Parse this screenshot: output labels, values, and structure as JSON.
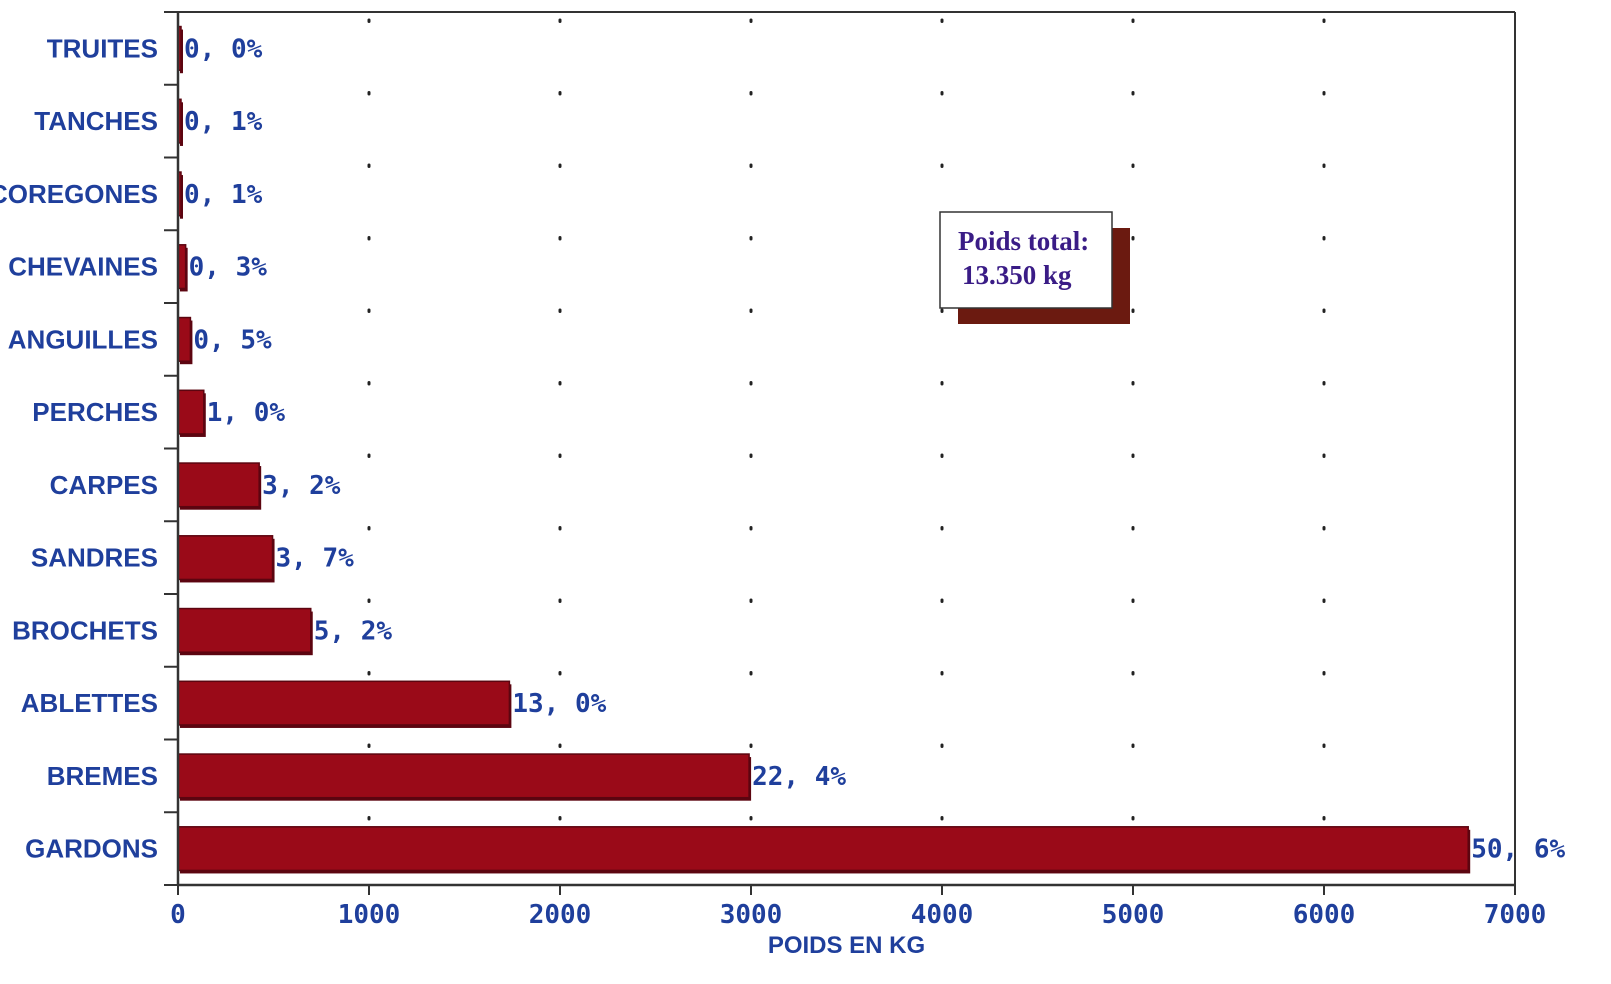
{
  "chart_data": {
    "type": "bar",
    "orientation": "horizontal",
    "categories": [
      "TRUITES",
      "TANCHES",
      "COREGONES",
      "CHEVAINES",
      "ANGUILLES",
      "PERCHES",
      "CARPES",
      "SANDRES",
      "BROCHETS",
      "ABLETTES",
      "BREMES",
      "GARDONS"
    ],
    "values": [
      5,
      15,
      15,
      40,
      65,
      135,
      425,
      495,
      695,
      1735,
      2990,
      6755
    ],
    "data_labels": [
      "0, 0%",
      "0, 1%",
      "0, 1%",
      "0, 3%",
      "0, 5%",
      "1, 0%",
      "3, 2%",
      "3, 7%",
      "5, 2%",
      "13, 0%",
      "22, 4%",
      "50, 6%"
    ],
    "xlabel": "POIDS EN KG",
    "ylabel": "",
    "title": "",
    "xlim": [
      0,
      7000
    ],
    "xticks": [
      "0",
      "1000",
      "2000",
      "3000",
      "4000",
      "5000",
      "6000",
      "7000"
    ],
    "grid": "dotted vertical",
    "annotation": {
      "line1": "Poids total:",
      "line2": "13.350 kg"
    },
    "colors": {
      "bar": "#9a0a18",
      "bar_dark": "#5c0510",
      "text": "#1f3f9c",
      "note_text": "#3a1c86",
      "note_shadow": "#6b1a10",
      "axis": "#333333"
    }
  }
}
